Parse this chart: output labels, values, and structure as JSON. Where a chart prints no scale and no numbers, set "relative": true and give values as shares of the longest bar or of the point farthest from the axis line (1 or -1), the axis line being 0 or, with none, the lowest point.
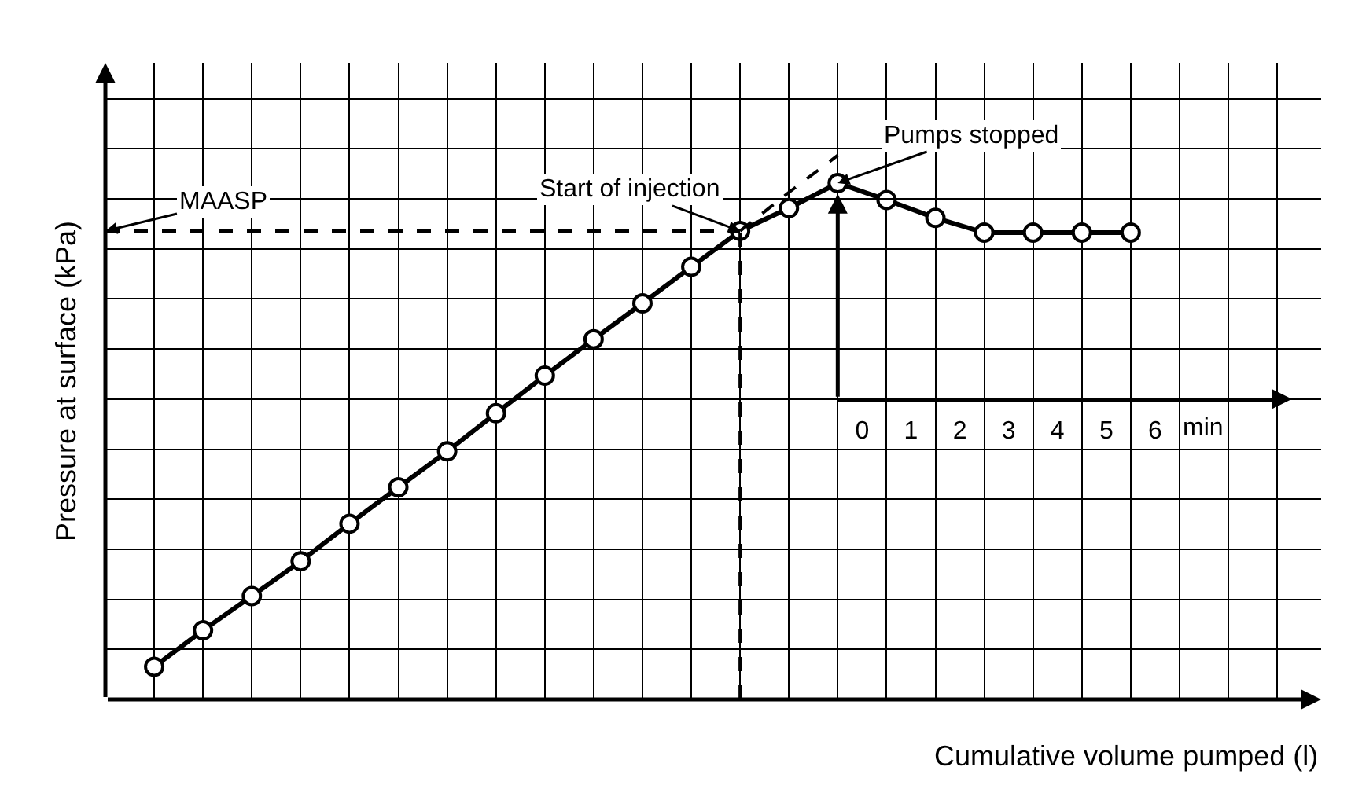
{
  "chart_data": {
    "type": "line",
    "relative": true,
    "xlabel": "Cumulative volume pumped (l)",
    "ylabel": "Pressure at surface (kPa)",
    "categories": [
      null,
      null,
      null,
      null,
      null,
      null,
      null,
      null,
      null,
      null,
      null,
      null,
      null,
      null,
      null,
      null,
      null,
      null,
      null,
      null,
      null
    ],
    "series": [
      {
        "color": "#000000",
        "values": [
          0.06,
          0.127,
          0.19,
          0.254,
          0.323,
          0.39,
          0.456,
          0.526,
          0.595,
          0.662,
          0.728,
          0.795,
          0.861,
          0.903,
          0.949,
          0.918,
          0.885,
          0.858,
          0.858,
          0.858,
          0.858
        ]
      },
      {
        "type": "line",
        "color": "#000000",
        "values": [
          null,
          null,
          null,
          null,
          null,
          null,
          null,
          null,
          null,
          null,
          null,
          null,
          0.861,
          0.932,
          1.0,
          null,
          null,
          null,
          null,
          null,
          null
        ],
        "line_style": "dashed",
        "marker": "none"
      }
    ],
    "marker": "circle",
    "line_style": "solid",
    "grid": true,
    "tick_labels": false,
    "ref_lines": [
      {
        "axis": "y",
        "value": 0.861,
        "line_style": "dashed"
      }
    ],
    "annotations": [
      "MAASP",
      "Start of injection",
      "Pumps stopped"
    ],
    "x2lim": [
      -0.5,
      8.4
    ],
    "x2ticks": [
      0,
      1,
      2,
      3,
      4,
      5,
      6
    ],
    "x2label": "min"
  }
}
